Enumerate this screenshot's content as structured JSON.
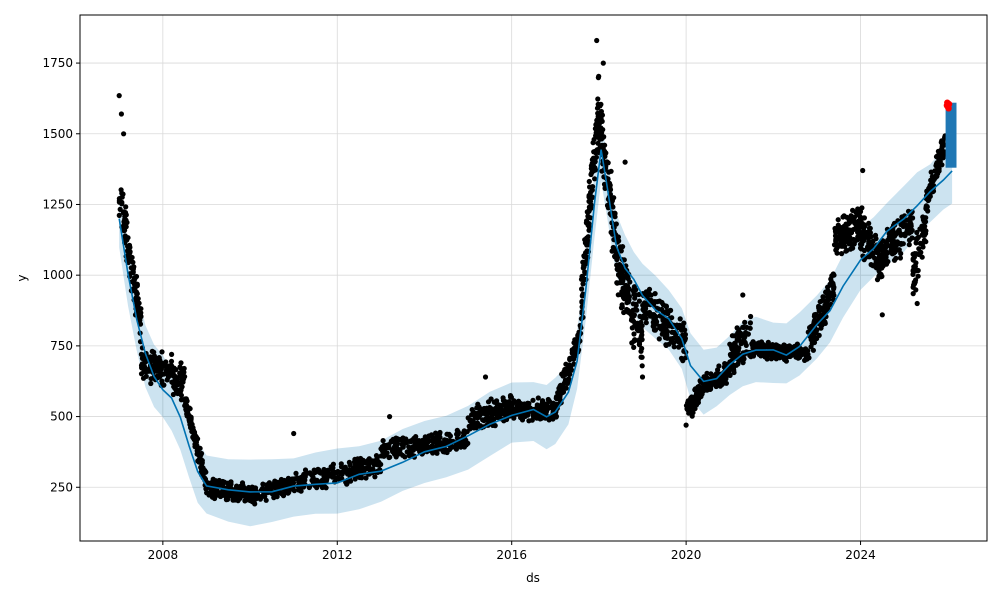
{
  "chart_data": {
    "type": "scatter",
    "title": "",
    "xlabel": "ds",
    "ylabel": "y",
    "xlim": [
      2006.1,
      2026.9
    ],
    "ylim": [
      60,
      1920
    ],
    "grid": true,
    "x_ticks": [
      {
        "value": 2008,
        "label": "2008"
      },
      {
        "value": 2012,
        "label": "2012"
      },
      {
        "value": 2016,
        "label": "2016"
      },
      {
        "value": 2020,
        "label": "2020"
      },
      {
        "value": 2024,
        "label": "2024"
      }
    ],
    "y_ticks": [
      {
        "value": 250,
        "label": "250"
      },
      {
        "value": 500,
        "label": "500"
      },
      {
        "value": 750,
        "label": "750"
      },
      {
        "value": 1000,
        "label": "1000"
      },
      {
        "value": 1250,
        "label": "1250"
      },
      {
        "value": 1500,
        "label": "1500"
      },
      {
        "value": 1750,
        "label": "1750"
      }
    ],
    "colors": {
      "observed": "#000000",
      "forecast_line": "#0072B2",
      "uncertainty_band": "#0072B2",
      "highlight": "#ff0000",
      "future_forecast": "#1f77b4"
    },
    "trend": [
      [
        2007.0,
        1200
      ],
      [
        2007.2,
        1000
      ],
      [
        2007.4,
        850
      ],
      [
        2007.6,
        720
      ],
      [
        2007.8,
        640
      ],
      [
        2008.0,
        600
      ],
      [
        2008.2,
        560
      ],
      [
        2008.4,
        500
      ],
      [
        2008.6,
        400
      ],
      [
        2008.8,
        300
      ],
      [
        2009.0,
        260
      ],
      [
        2009.5,
        240
      ],
      [
        2010.0,
        230
      ],
      [
        2010.5,
        240
      ],
      [
        2011.0,
        250
      ],
      [
        2011.5,
        260
      ],
      [
        2012.0,
        270
      ],
      [
        2012.5,
        290
      ],
      [
        2013.0,
        310
      ],
      [
        2013.5,
        340
      ],
      [
        2014.0,
        370
      ],
      [
        2014.5,
        400
      ],
      [
        2015.0,
        430
      ],
      [
        2015.5,
        470
      ],
      [
        2016.0,
        510
      ],
      [
        2016.5,
        520
      ],
      [
        2016.8,
        500
      ],
      [
        2017.0,
        520
      ],
      [
        2017.3,
        580
      ],
      [
        2017.5,
        700
      ],
      [
        2017.7,
        950
      ],
      [
        2017.9,
        1250
      ],
      [
        2018.05,
        1450
      ],
      [
        2018.2,
        1300
      ],
      [
        2018.4,
        1100
      ],
      [
        2018.6,
        1030
      ],
      [
        2018.8,
        980
      ],
      [
        2019.0,
        930
      ],
      [
        2019.3,
        880
      ],
      [
        2019.6,
        840
      ],
      [
        2019.9,
        780
      ],
      [
        2020.1,
        680
      ],
      [
        2020.4,
        620
      ],
      [
        2020.7,
        640
      ],
      [
        2021.0,
        680
      ],
      [
        2021.3,
        720
      ],
      [
        2021.6,
        740
      ],
      [
        2022.0,
        730
      ],
      [
        2022.3,
        720
      ],
      [
        2022.6,
        750
      ],
      [
        2023.0,
        820
      ],
      [
        2023.3,
        880
      ],
      [
        2023.6,
        960
      ],
      [
        2024.0,
        1050
      ],
      [
        2024.3,
        1100
      ],
      [
        2024.6,
        1150
      ],
      [
        2025.0,
        1200
      ],
      [
        2025.3,
        1250
      ],
      [
        2025.6,
        1290
      ],
      [
        2025.9,
        1340
      ],
      [
        2026.1,
        1370
      ]
    ],
    "band_halfwidth": 110,
    "observed_segments": [
      {
        "x0": 2007.0,
        "x1": 2007.5,
        "y0": 1300,
        "y1": 820,
        "spread": 110,
        "n": 110
      },
      {
        "x0": 2007.5,
        "x1": 2008.5,
        "y0": 700,
        "y1": 620,
        "spread": 70,
        "n": 150
      },
      {
        "x0": 2008.5,
        "x1": 2009.0,
        "y0": 560,
        "y1": 260,
        "spread": 50,
        "n": 110
      },
      {
        "x0": 2009.0,
        "x1": 2010.0,
        "y0": 250,
        "y1": 230,
        "spread": 40,
        "n": 150
      },
      {
        "x0": 2010.0,
        "x1": 2011.0,
        "y0": 220,
        "y1": 260,
        "spread": 35,
        "n": 140
      },
      {
        "x0": 2011.0,
        "x1": 2013.0,
        "y0": 260,
        "y1": 330,
        "spread": 45,
        "n": 220
      },
      {
        "x0": 2013.0,
        "x1": 2015.0,
        "y0": 380,
        "y1": 420,
        "spread": 45,
        "n": 220
      },
      {
        "x0": 2015.0,
        "x1": 2016.0,
        "y0": 480,
        "y1": 540,
        "spread": 55,
        "n": 140
      },
      {
        "x0": 2016.0,
        "x1": 2017.0,
        "y0": 530,
        "y1": 520,
        "spread": 45,
        "n": 140
      },
      {
        "x0": 2017.0,
        "x1": 2017.6,
        "y0": 530,
        "y1": 800,
        "spread": 60,
        "n": 100
      },
      {
        "x0": 2017.6,
        "x1": 2018.0,
        "y0": 900,
        "y1": 1620,
        "spread": 130,
        "n": 120
      },
      {
        "x0": 2018.0,
        "x1": 2018.5,
        "y0": 1550,
        "y1": 1000,
        "spread": 140,
        "n": 130
      },
      {
        "x0": 2018.5,
        "x1": 2019.0,
        "y0": 1000,
        "y1": 780,
        "spread": 140,
        "n": 120
      },
      {
        "x0": 2019.0,
        "x1": 2020.0,
        "y0": 900,
        "y1": 760,
        "spread": 80,
        "n": 160
      },
      {
        "x0": 2020.0,
        "x1": 2020.3,
        "y0": 520,
        "y1": 580,
        "spread": 50,
        "n": 70
      },
      {
        "x0": 2020.3,
        "x1": 2021.0,
        "y0": 600,
        "y1": 660,
        "spread": 45,
        "n": 110
      },
      {
        "x0": 2021.0,
        "x1": 2021.5,
        "y0": 720,
        "y1": 780,
        "spread": 90,
        "n": 90
      },
      {
        "x0": 2021.5,
        "x1": 2022.8,
        "y0": 740,
        "y1": 720,
        "spread": 35,
        "n": 180
      },
      {
        "x0": 2022.8,
        "x1": 2023.4,
        "y0": 760,
        "y1": 960,
        "spread": 70,
        "n": 110
      },
      {
        "x0": 2023.4,
        "x1": 2024.0,
        "y0": 1120,
        "y1": 1180,
        "spread": 80,
        "n": 120
      },
      {
        "x0": 2024.0,
        "x1": 2024.5,
        "y0": 1160,
        "y1": 1030,
        "spread": 90,
        "n": 100
      },
      {
        "x0": 2024.5,
        "x1": 2025.2,
        "y0": 1080,
        "y1": 1180,
        "spread": 80,
        "n": 110
      },
      {
        "x0": 2025.2,
        "x1": 2025.5,
        "y0": 1000,
        "y1": 1200,
        "spread": 110,
        "n": 60
      },
      {
        "x0": 2025.5,
        "x1": 2025.95,
        "y0": 1250,
        "y1": 1480,
        "spread": 60,
        "n": 90
      }
    ],
    "observed_outliers": [
      [
        2007.0,
        1635
      ],
      [
        2007.05,
        1570
      ],
      [
        2007.1,
        1500
      ],
      [
        2008.2,
        720
      ],
      [
        2011.0,
        440
      ],
      [
        2013.2,
        500
      ],
      [
        2015.4,
        640
      ],
      [
        2017.95,
        1830
      ],
      [
        2018.1,
        1750
      ],
      [
        2018.6,
        1400
      ],
      [
        2019.0,
        640
      ],
      [
        2020.0,
        470
      ],
      [
        2021.3,
        930
      ],
      [
        2024.05,
        1370
      ],
      [
        2024.5,
        860
      ],
      [
        2025.3,
        900
      ]
    ],
    "future_forecast": {
      "x0": 2025.95,
      "x1": 2026.2,
      "y0": 1380,
      "y1": 1610
    },
    "highlight_points": [
      [
        2025.98,
        1600
      ],
      [
        2026.0,
        1595
      ],
      [
        2026.02,
        1590
      ],
      [
        2025.99,
        1610
      ],
      [
        2026.03,
        1605
      ]
    ]
  }
}
